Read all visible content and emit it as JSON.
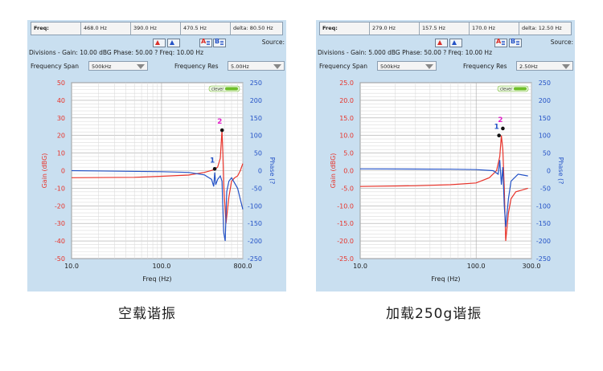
{
  "panels": [
    {
      "freq_bar": [
        "Freq:",
        "468.0 Hz",
        "390.0 Hz",
        "470.5 Hz",
        "delta: 80.50 Hz"
      ],
      "source_label": "Source:",
      "divisions": "Divisions - Gain: 10.00 dBG  Phase: 50.00 ?  Freq: 10.00 Hz",
      "freq_span_label": "Frequency Span",
      "freq_span_value": "500kHz",
      "freq_res_label": "Frequency Res",
      "freq_res_value": "5.00Hz",
      "logo_text": "clever",
      "chart_data": {
        "type": "line",
        "xlabel": "Freq (Hz)",
        "ylabel_left": "Gain (dBG)",
        "ylabel_right": "Phase (?",
        "x_scale": "log",
        "xlim": [
          10,
          800
        ],
        "x_ticks": [
          "10.0",
          "100.0",
          "800.0"
        ],
        "ylim_left": [
          -50,
          50
        ],
        "y_ticks_left": [
          "50",
          "40",
          "30",
          "20",
          "10",
          "0",
          "-10",
          "-20",
          "-30",
          "-40",
          "-50"
        ],
        "ylim_right": [
          -250,
          250
        ],
        "y_ticks_right": [
          "250",
          "200",
          "150",
          "100",
          "50",
          "0",
          "-50",
          "-100",
          "-150",
          "-200",
          "-250"
        ],
        "grid": true,
        "markers": [
          {
            "label": "1",
            "x": 390,
            "y_phase": 5
          },
          {
            "label": "2",
            "x": 470.5,
            "y_gain": 23
          }
        ],
        "series": [
          {
            "axis": "left",
            "color": "#e8332a",
            "x": [
              10,
              50,
              100,
              200,
              300,
              380,
              420,
              450,
              470,
              480,
              490,
              520,
              560,
              600,
              650,
              700,
              750,
              800
            ],
            "y": [
              -4,
              -3.8,
              -3.2,
              -2.5,
              -1,
              0.5,
              2,
              7,
              23,
              10,
              -8,
              -30,
              -15,
              -6,
              -4,
              -3,
              0,
              4
            ]
          },
          {
            "axis": "right",
            "color": "#2452c6",
            "x": [
              10,
              100,
              200,
              300,
              360,
              380,
              390,
              400,
              420,
              450,
              470,
              490,
              510,
              530,
              560,
              600,
              700,
              800
            ],
            "y": [
              0,
              -3,
              -5,
              -12,
              -25,
              -45,
              -5,
              -40,
              -25,
              -15,
              -30,
              -175,
              -200,
              -60,
              -30,
              -20,
              -50,
              -110
            ]
          }
        ]
      }
    },
    {
      "freq_bar": [
        "Freq:",
        "279.0 Hz",
        "157.5 Hz",
        "170.0 Hz",
        "delta: 12.50 Hz"
      ],
      "source_label": "Source:",
      "divisions": "Divisions - Gain: 5.000 dBG  Phase: 50.00 ?  Freq: 10.00 Hz",
      "freq_span_label": "Frequency Span",
      "freq_span_value": "500kHz",
      "freq_res_label": "Frequency Res",
      "freq_res_value": "2.50Hz",
      "logo_text": "clever",
      "chart_data": {
        "type": "line",
        "xlabel": "Freq (Hz)",
        "ylabel_left": "Gain (dBG)",
        "ylabel_right": "Phase (?",
        "x_scale": "log",
        "xlim": [
          10,
          300
        ],
        "x_ticks": [
          "10.0",
          "100.0",
          "300.0"
        ],
        "ylim_left": [
          -25,
          25
        ],
        "y_ticks_left": [
          "25.0",
          "20.0",
          "15.0",
          "10.0",
          "5.0",
          "0.0",
          "-5.0",
          "-10.0",
          "-15.0",
          "-20.0",
          "-25.0"
        ],
        "ylim_right": [
          -250,
          250
        ],
        "y_ticks_right": [
          "250",
          "200",
          "150",
          "100",
          "50",
          "0",
          "-50",
          "-100",
          "-150",
          "-200",
          "-250"
        ],
        "grid": true,
        "markers": [
          {
            "label": "1",
            "x": 157.5,
            "y_gain": 10
          },
          {
            "label": "2",
            "x": 170,
            "y_gain": 12
          }
        ],
        "series": [
          {
            "axis": "left",
            "color": "#e8332a",
            "x": [
              10,
              30,
              60,
              100,
              130,
              150,
              160,
              165,
              170,
              175,
              180,
              190,
              200,
              220,
              250,
              280
            ],
            "y": [
              -4.5,
              -4.3,
              -4,
              -3.5,
              -2,
              0,
              4,
              10,
              6,
              -5,
              -20,
              -12,
              -8,
              -6,
              -5.5,
              -5
            ]
          },
          {
            "axis": "right",
            "color": "#2452c6",
            "x": [
              10,
              60,
              100,
              140,
              155,
              160,
              165,
              170,
              175,
              180,
              190,
              200,
              230,
              280
            ],
            "y": [
              5,
              4,
              3,
              0,
              -10,
              30,
              -40,
              10,
              -100,
              -160,
              -80,
              -30,
              -10,
              -15
            ]
          }
        ]
      }
    }
  ],
  "captions": [
    "空载谐振",
    "加载250g谐振"
  ],
  "colors": {
    "panel_bg": "#c9dff0",
    "plot_bg": "#ffffff",
    "gain": "#e8332a",
    "phase": "#2452c6",
    "marker2": "#e020c8",
    "marker1": "#2452c6"
  }
}
